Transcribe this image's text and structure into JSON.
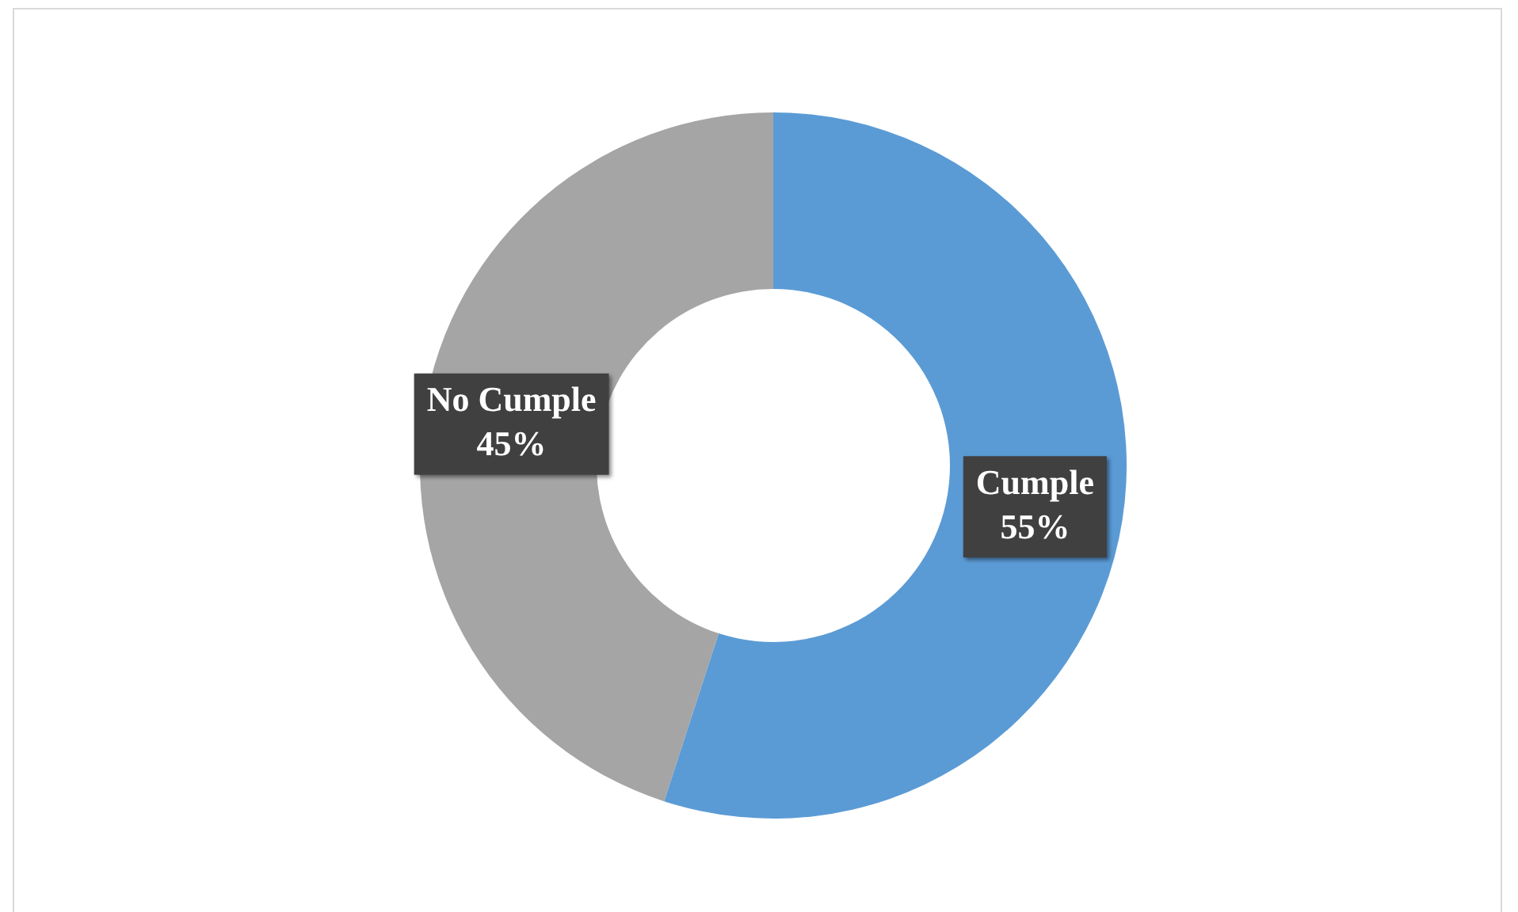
{
  "chart_data": {
    "type": "donut",
    "categories": [
      "Cumple",
      "No Cumple"
    ],
    "values": [
      55,
      45
    ],
    "colors": [
      "#5b9bd5",
      "#a5a5a5"
    ],
    "value_labels": [
      "55%",
      "45%"
    ],
    "legend": false
  }
}
